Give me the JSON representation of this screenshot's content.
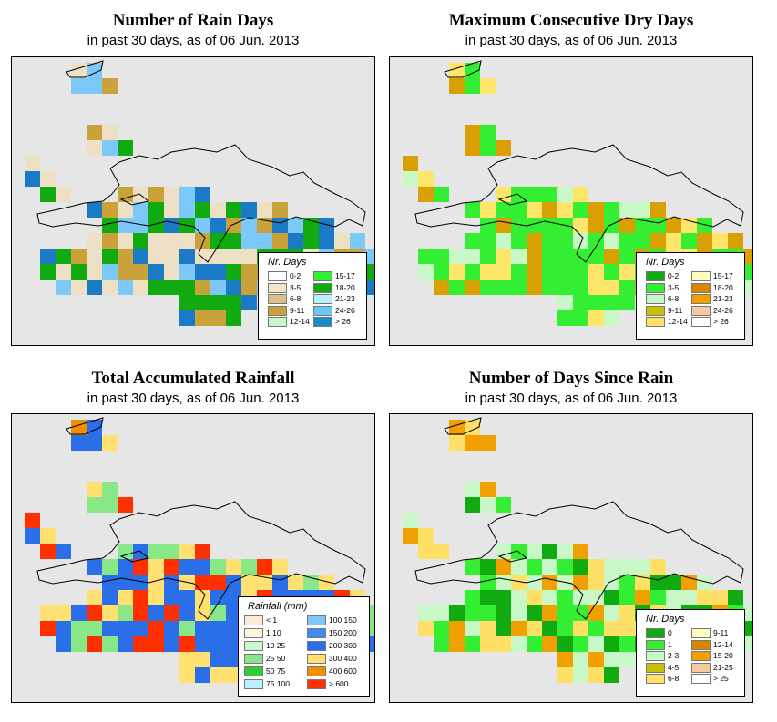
{
  "panels": [
    {
      "title": "Number of Rain Days",
      "subtitle": "in past 30 days, as of  06 Jun. 2013",
      "legend_title": "Nr. Days",
      "grid_colors": [
        "#ede0c4",
        "#d9b982",
        "#c9a23a",
        "#33dd33",
        "#11aa11",
        "#b8f0ff",
        "#7cc8f8",
        "#2e95e0",
        "#1a7ac6",
        "#c8f8c8"
      ],
      "legend": [
        {
          "label": "0-2",
          "color": "#ffffff"
        },
        {
          "label": "3-5",
          "color": "#f2e6c9"
        },
        {
          "label": "6-8",
          "color": "#dcbf8c"
        },
        {
          "label": "9-11",
          "color": "#c9a23a"
        },
        {
          "label": "12-14",
          "color": "#c8f8c8"
        },
        {
          "label": "15-17",
          "color": "#33ee33"
        },
        {
          "label": "18-20",
          "color": "#11aa11"
        },
        {
          "label": "21-23",
          "color": "#b8f0ff"
        },
        {
          "label": "24-26",
          "color": "#6ec6f5"
        },
        {
          "label": "> 26",
          "color": "#1a8ccc"
        }
      ]
    },
    {
      "title": "Maximum Consecutive Dry Days",
      "subtitle": "in past 30 days, as of  06 Jun. 2013",
      "legend_title": "Nr. Days",
      "grid_colors": [
        "#33ee33",
        "#33ee33",
        "#33ee33",
        "#11aa11",
        "#c8f8c8",
        "#c9c000",
        "#d8a000",
        "#fff8a0",
        "#ffe66a",
        "#33ee33"
      ],
      "legend": [
        {
          "label": "0-2",
          "color": "#11aa11"
        },
        {
          "label": "3-5",
          "color": "#33ee33"
        },
        {
          "label": "6-8",
          "color": "#c8f8c8"
        },
        {
          "label": "9-11",
          "color": "#c9c000"
        },
        {
          "label": "12-14",
          "color": "#ffe066"
        },
        {
          "label": "15-17",
          "color": "#fffcc0"
        },
        {
          "label": "18-20",
          "color": "#d88800"
        },
        {
          "label": "21-23",
          "color": "#f0a000"
        },
        {
          "label": "24-26",
          "color": "#f8c8a0"
        },
        {
          "label": "> 26",
          "color": "#ffffff"
        }
      ]
    },
    {
      "title": "Total Accumulated Rainfall",
      "subtitle": "in past 30 days, as of  06 Jun. 2013",
      "legend_title": "Rainfall (mm)",
      "grid_colors": [
        "#2a6ee8",
        "#3a8ef0",
        "#ffe070",
        "#f09000",
        "#ff3000",
        "#33cc33",
        "#88e888",
        "#7cc8f8",
        "#2a6ee8",
        "#ffe070"
      ],
      "legend": [
        {
          "label": "< 1",
          "color": "#f8ecd8",
          "lo": "",
          "hi": ""
        },
        {
          "label": "1  10",
          "color": "#fff4d8"
        },
        {
          "label": "10  25",
          "color": "#ccf8cc"
        },
        {
          "label": "25  50",
          "color": "#88e888"
        },
        {
          "label": "50  75",
          "color": "#33cc33"
        },
        {
          "label": "75  100",
          "color": "#b8f0ff"
        },
        {
          "label": "100  150",
          "color": "#7cc8f8"
        },
        {
          "label": "150  200",
          "color": "#3a8ef0"
        },
        {
          "label": "200  300",
          "color": "#2a6ee8"
        },
        {
          "label": "300  400",
          "color": "#ffe070"
        },
        {
          "label": "400  600",
          "color": "#f09000"
        },
        {
          "label": "> 600",
          "color": "#ff3000"
        }
      ]
    },
    {
      "title": "Number of Days Since Rain",
      "subtitle": "in past 30 days, as of  06 Jun. 2013",
      "legend_title": "Nr. Days",
      "grid_colors": [
        "#11aa11",
        "#11aa11",
        "#33ee33",
        "#33ee33",
        "#c8f8c8",
        "#c9c000",
        "#ffe066",
        "#11aa11",
        "#f0a000",
        "#33ee33"
      ],
      "legend": [
        {
          "label": "0",
          "color": "#11aa11"
        },
        {
          "label": "1",
          "color": "#33ee33"
        },
        {
          "label": "2-3",
          "color": "#c8f8c8"
        },
        {
          "label": "4-5",
          "color": "#c9c000"
        },
        {
          "label": "6-8",
          "color": "#ffe066"
        },
        {
          "label": "9-11",
          "color": "#fffcc0"
        },
        {
          "label": "12-14",
          "color": "#d88800"
        },
        {
          "label": "15-20",
          "color": "#f0a000"
        },
        {
          "label": "21-25",
          "color": "#f8c8a0"
        },
        {
          "label": "> 25",
          "color": "#ffffff"
        }
      ]
    }
  ]
}
